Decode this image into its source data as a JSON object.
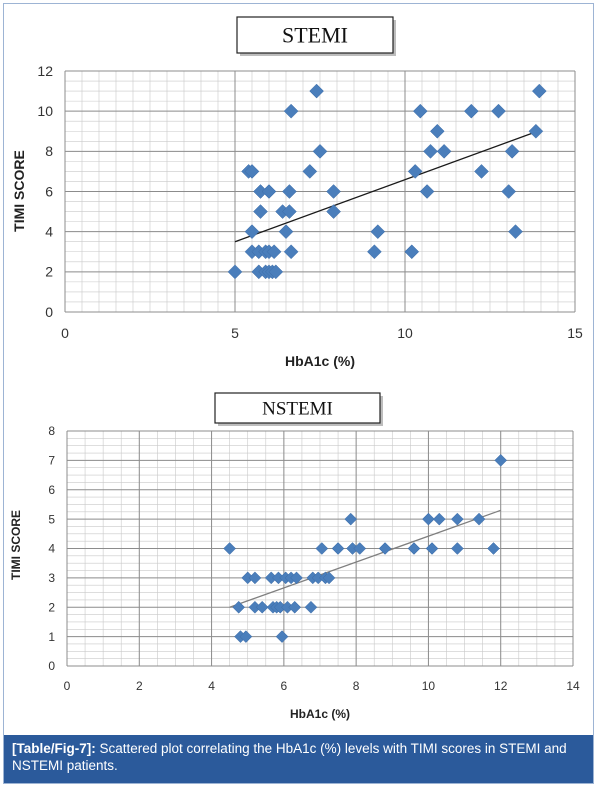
{
  "caption": {
    "label": "[Table/Fig-7]:",
    "text": " Scattered plot correlating the HbA1c (%) levels with TIMI scores in STEMI and NSTEMI patients."
  },
  "chart_data": [
    {
      "type": "scatter",
      "title": "STEMI",
      "xlabel": "HbA1c (%)",
      "ylabel": "TIMI SCORE",
      "xlim": [
        0,
        15
      ],
      "ylim": [
        0,
        12
      ],
      "xticks": [
        0,
        5,
        10,
        15
      ],
      "yticks": [
        0,
        2,
        4,
        6,
        8,
        10,
        12
      ],
      "grid": true,
      "marker": "diamond",
      "marker_color": "#4a7ebb",
      "trendline": {
        "x": [
          5.0,
          13.9
        ],
        "y": [
          3.5,
          9.0
        ],
        "color": "#1a1a1a"
      },
      "points": [
        {
          "x": 5.0,
          "y": 2
        },
        {
          "x": 5.4,
          "y": 7
        },
        {
          "x": 5.5,
          "y": 7
        },
        {
          "x": 5.5,
          "y": 4
        },
        {
          "x": 5.5,
          "y": 3
        },
        {
          "x": 5.7,
          "y": 3
        },
        {
          "x": 5.7,
          "y": 2
        },
        {
          "x": 5.75,
          "y": 6
        },
        {
          "x": 5.75,
          "y": 5
        },
        {
          "x": 5.9,
          "y": 3
        },
        {
          "x": 5.9,
          "y": 2
        },
        {
          "x": 6.0,
          "y": 6
        },
        {
          "x": 6.0,
          "y": 3
        },
        {
          "x": 6.0,
          "y": 2
        },
        {
          "x": 6.1,
          "y": 2
        },
        {
          "x": 6.15,
          "y": 3
        },
        {
          "x": 6.2,
          "y": 2
        },
        {
          "x": 6.4,
          "y": 5
        },
        {
          "x": 6.5,
          "y": 4
        },
        {
          "x": 6.6,
          "y": 6
        },
        {
          "x": 6.6,
          "y": 5
        },
        {
          "x": 6.65,
          "y": 3
        },
        {
          "x": 6.65,
          "y": 10
        },
        {
          "x": 7.2,
          "y": 7
        },
        {
          "x": 7.4,
          "y": 11
        },
        {
          "x": 7.5,
          "y": 8
        },
        {
          "x": 7.9,
          "y": 6
        },
        {
          "x": 7.9,
          "y": 5
        },
        {
          "x": 9.1,
          "y": 3
        },
        {
          "x": 9.2,
          "y": 4
        },
        {
          "x": 10.2,
          "y": 3
        },
        {
          "x": 10.3,
          "y": 7
        },
        {
          "x": 10.45,
          "y": 10
        },
        {
          "x": 10.65,
          "y": 6
        },
        {
          "x": 10.75,
          "y": 8
        },
        {
          "x": 10.95,
          "y": 9
        },
        {
          "x": 11.15,
          "y": 8
        },
        {
          "x": 11.95,
          "y": 10
        },
        {
          "x": 12.25,
          "y": 7
        },
        {
          "x": 12.75,
          "y": 10
        },
        {
          "x": 13.05,
          "y": 6
        },
        {
          "x": 13.15,
          "y": 8
        },
        {
          "x": 13.25,
          "y": 4
        },
        {
          "x": 13.85,
          "y": 9
        },
        {
          "x": 13.95,
          "y": 11
        }
      ]
    },
    {
      "type": "scatter",
      "title": "NSTEMI",
      "xlabel": "HbA1c (%)",
      "ylabel": "TIMI SCORE",
      "xlim": [
        0,
        14
      ],
      "ylim": [
        0,
        8
      ],
      "xticks": [
        0,
        2,
        4,
        6,
        8,
        10,
        12,
        14
      ],
      "yticks": [
        0,
        1,
        2,
        3,
        4,
        5,
        6,
        7,
        8
      ],
      "grid": true,
      "marker": "diamond",
      "marker_color": "#4a7ebb",
      "trendline": {
        "x": [
          4.5,
          12.0
        ],
        "y": [
          2.0,
          5.3
        ],
        "color": "#7f7f7f"
      },
      "points": [
        {
          "x": 4.5,
          "y": 4
        },
        {
          "x": 4.75,
          "y": 2
        },
        {
          "x": 4.8,
          "y": 1
        },
        {
          "x": 4.95,
          "y": 1
        },
        {
          "x": 5.0,
          "y": 3
        },
        {
          "x": 5.2,
          "y": 3
        },
        {
          "x": 5.2,
          "y": 2
        },
        {
          "x": 5.4,
          "y": 2
        },
        {
          "x": 5.65,
          "y": 3
        },
        {
          "x": 5.7,
          "y": 2
        },
        {
          "x": 5.8,
          "y": 2
        },
        {
          "x": 5.85,
          "y": 3
        },
        {
          "x": 5.9,
          "y": 2
        },
        {
          "x": 5.95,
          "y": 1
        },
        {
          "x": 6.05,
          "y": 3
        },
        {
          "x": 6.1,
          "y": 2
        },
        {
          "x": 6.2,
          "y": 3
        },
        {
          "x": 6.3,
          "y": 2
        },
        {
          "x": 6.35,
          "y": 3
        },
        {
          "x": 6.75,
          "y": 2
        },
        {
          "x": 6.8,
          "y": 3
        },
        {
          "x": 6.95,
          "y": 3
        },
        {
          "x": 7.05,
          "y": 4
        },
        {
          "x": 7.15,
          "y": 3
        },
        {
          "x": 7.25,
          "y": 3
        },
        {
          "x": 7.5,
          "y": 4
        },
        {
          "x": 7.85,
          "y": 5
        },
        {
          "x": 7.9,
          "y": 4
        },
        {
          "x": 8.1,
          "y": 4
        },
        {
          "x": 8.8,
          "y": 4
        },
        {
          "x": 9.6,
          "y": 4
        },
        {
          "x": 10.0,
          "y": 5
        },
        {
          "x": 10.1,
          "y": 4
        },
        {
          "x": 10.3,
          "y": 5
        },
        {
          "x": 10.8,
          "y": 4
        },
        {
          "x": 10.8,
          "y": 5
        },
        {
          "x": 11.4,
          "y": 5
        },
        {
          "x": 11.8,
          "y": 4
        },
        {
          "x": 12.0,
          "y": 7
        }
      ]
    }
  ]
}
